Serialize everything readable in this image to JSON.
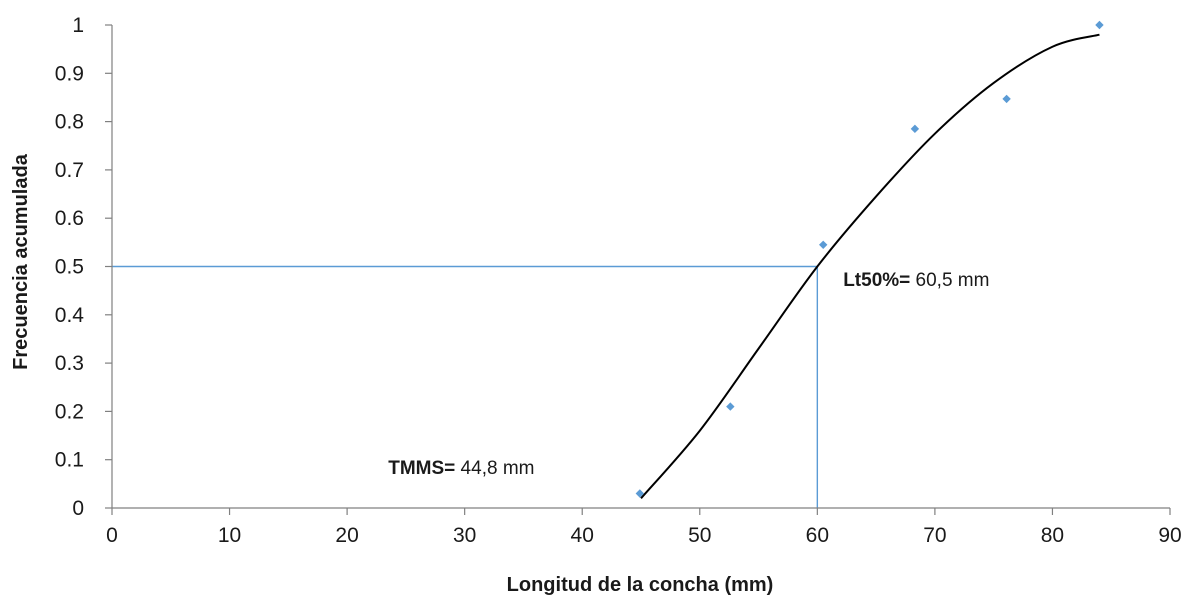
{
  "chart_data": {
    "type": "scatter",
    "xlabel": "Longitud de la concha (mm)",
    "ylabel": "Frecuencia acumulada",
    "xlim": [
      0,
      90
    ],
    "ylim": [
      0,
      1
    ],
    "x_ticks": [
      "0",
      "10",
      "20",
      "30",
      "40",
      "50",
      "60",
      "70",
      "80",
      "90"
    ],
    "y_ticks": [
      "0",
      "0.1",
      "0.2",
      "0.3",
      "0.4",
      "0.5",
      "0.6",
      "0.7",
      "0.8",
      "0.9",
      "1"
    ],
    "x_tick_values": [
      0,
      10,
      20,
      30,
      40,
      50,
      60,
      70,
      80,
      90
    ],
    "y_tick_values": [
      0,
      0.1,
      0.2,
      0.3,
      0.4,
      0.5,
      0.6,
      0.7,
      0.8,
      0.9,
      1
    ],
    "grid": false,
    "points": [
      {
        "x": 44.9,
        "y": 0.03
      },
      {
        "x": 52.6,
        "y": 0.21
      },
      {
        "x": 60.5,
        "y": 0.545
      },
      {
        "x": 68.3,
        "y": 0.785
      },
      {
        "x": 76.1,
        "y": 0.847
      },
      {
        "x": 84.0,
        "y": 1.0
      }
    ],
    "fit_curve": [
      {
        "x": 45.0,
        "y": 0.02
      },
      {
        "x": 50.0,
        "y": 0.16
      },
      {
        "x": 55.0,
        "y": 0.33
      },
      {
        "x": 60.0,
        "y": 0.5
      },
      {
        "x": 65.0,
        "y": 0.645
      },
      {
        "x": 70.0,
        "y": 0.775
      },
      {
        "x": 75.0,
        "y": 0.88
      },
      {
        "x": 80.0,
        "y": 0.955
      },
      {
        "x": 84.0,
        "y": 0.98
      }
    ],
    "reference_lines": {
      "x": 60,
      "y": 0.5
    },
    "colors": {
      "points": "#5b9bd5",
      "reference": "#5b9bd5",
      "curve": "#000000",
      "axis": "#808080"
    },
    "annotations": [
      {
        "id": "lt50",
        "bold": "Lt50%=",
        "text": " 60,5 mm",
        "x": 62.2,
        "y": 0.46
      },
      {
        "id": "tmms",
        "bold": "TMMS=",
        "text": " 44,8 mm",
        "x": 23.5,
        "y": 0.07
      }
    ]
  }
}
